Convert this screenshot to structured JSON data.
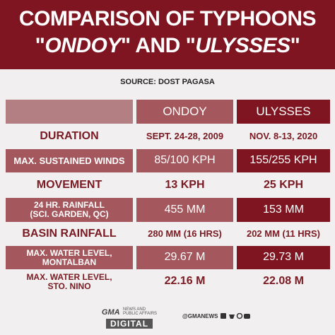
{
  "header": {
    "title_line1": "COMPARISON OF TYPHOONS",
    "title_line2": [
      "\"",
      "ONDOY",
      "\" AND \"",
      "ULYSSES",
      "\""
    ]
  },
  "source": "SOURCE: DOST PAGASA",
  "table": {
    "columns": [
      "ONDOY",
      "ULYSSES"
    ],
    "rows": [
      [
        "DURATION",
        "SEPT. 24-28, 2009",
        "NOV. 8-13, 2020"
      ],
      [
        "MAX. SUSTAINED WINDS",
        "85/100 KPH",
        "155/255 KPH"
      ],
      [
        "MOVEMENT",
        "13 KPH",
        "25 KPH"
      ],
      [
        "24 HR. RAINFALL\n(SCI. GARDEN, QC)",
        "455 MM",
        "153 MM"
      ],
      [
        "BASIN RAINFALL",
        "280 MM (16 HRS)",
        "202 MM (11 HRS)"
      ],
      [
        "MAX. WATER LEVEL,\nMONTALBAN",
        "29.67 M",
        "29.73 M"
      ],
      [
        "MAX. WATER LEVEL,\nSTO. NINO",
        "22.16 M",
        "22.08 M"
      ]
    ]
  },
  "footer": {
    "logo_top": "GMA",
    "logo_sub": "NEWS AND\nPUBLIC AFFAIRS",
    "logo_bottom": "DIGITAL",
    "handle": "@GMANEWS"
  }
}
